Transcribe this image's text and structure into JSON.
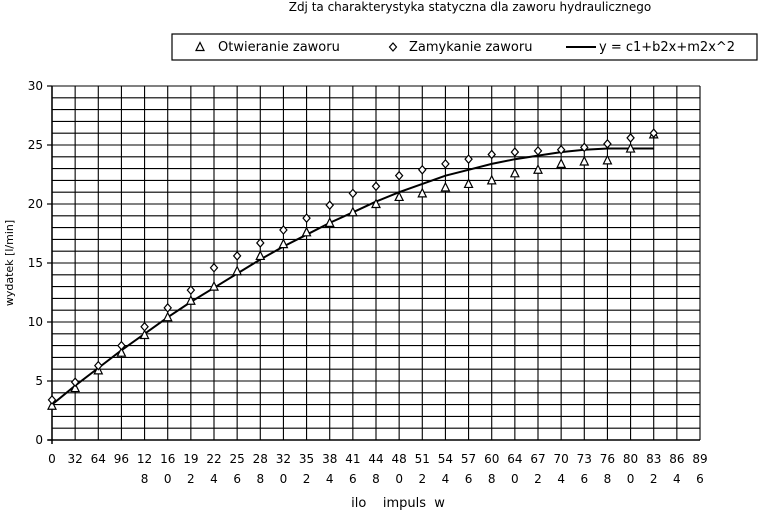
{
  "chart_data": {
    "type": "scatter",
    "title": "Zdj  ta charakterystyka statyczna dla zaworu hydraulicznego",
    "xlabel": "ilo    impuls  w",
    "ylabel": "wydatek [l/min]",
    "x_ticks": [
      {
        "l1": "0",
        "l2": ""
      },
      {
        "l1": "32",
        "l2": ""
      },
      {
        "l1": "64",
        "l2": ""
      },
      {
        "l1": "96",
        "l2": ""
      },
      {
        "l1": "12",
        "l2": "8"
      },
      {
        "l1": "16",
        "l2": "0"
      },
      {
        "l1": "19",
        "l2": "2"
      },
      {
        "l1": "22",
        "l2": "4"
      },
      {
        "l1": "25",
        "l2": "6"
      },
      {
        "l1": "28",
        "l2": "8"
      },
      {
        "l1": "32",
        "l2": "0"
      },
      {
        "l1": "35",
        "l2": "2"
      },
      {
        "l1": "38",
        "l2": "4"
      },
      {
        "l1": "41",
        "l2": "6"
      },
      {
        "l1": "44",
        "l2": "8"
      },
      {
        "l1": "48",
        "l2": "0"
      },
      {
        "l1": "51",
        "l2": "2"
      },
      {
        "l1": "54",
        "l2": "4"
      },
      {
        "l1": "57",
        "l2": "6"
      },
      {
        "l1": "60",
        "l2": "8"
      },
      {
        "l1": "64",
        "l2": "0"
      },
      {
        "l1": "67",
        "l2": "2"
      },
      {
        "l1": "70",
        "l2": "4"
      },
      {
        "l1": "73",
        "l2": "6"
      },
      {
        "l1": "76",
        "l2": "8"
      },
      {
        "l1": "80",
        "l2": "0"
      },
      {
        "l1": "83",
        "l2": "2"
      },
      {
        "l1": "86",
        "l2": "4"
      },
      {
        "l1": "89",
        "l2": "6"
      }
    ],
    "xlim": [
      0,
      896
    ],
    "ylim": [
      0,
      30
    ],
    "y_ticks": [
      0,
      5,
      10,
      15,
      20,
      25,
      30
    ],
    "y_minor_step": 1,
    "grid": true,
    "legend_position": "top",
    "series": [
      {
        "name": "Otwieranie zaworu",
        "marker": "triangle",
        "x": [
          0,
          32,
          64,
          96,
          128,
          160,
          192,
          224,
          256,
          288,
          320,
          352,
          384,
          416,
          448,
          480,
          512,
          544,
          576,
          608,
          640,
          672,
          704,
          736,
          768,
          800,
          832
        ],
        "y": [
          2.9,
          4.4,
          5.9,
          7.4,
          8.9,
          10.4,
          11.8,
          13.0,
          14.3,
          15.6,
          16.6,
          17.6,
          18.4,
          19.3,
          20.0,
          20.6,
          20.9,
          21.4,
          21.7,
          22.0,
          22.6,
          22.9,
          23.4,
          23.6,
          23.7,
          24.7,
          25.9
        ]
      },
      {
        "name": "Zamykanie zaworu",
        "marker": "diamond",
        "x": [
          0,
          32,
          64,
          96,
          128,
          160,
          192,
          224,
          256,
          288,
          320,
          352,
          384,
          416,
          448,
          480,
          512,
          544,
          576,
          608,
          640,
          672,
          704,
          736,
          768,
          800,
          832
        ],
        "y": [
          3.4,
          4.9,
          6.3,
          8.0,
          9.6,
          11.2,
          12.7,
          14.6,
          15.6,
          16.7,
          17.8,
          18.8,
          19.9,
          20.9,
          21.5,
          22.4,
          22.9,
          23.4,
          23.8,
          24.2,
          24.4,
          24.5,
          24.6,
          24.8,
          25.1,
          25.6,
          26.0
        ]
      },
      {
        "name": "y = c1+b2x+m2x^2",
        "marker": "line",
        "x": [
          0,
          32,
          64,
          96,
          128,
          160,
          192,
          224,
          256,
          288,
          320,
          352,
          384,
          416,
          448,
          480,
          512,
          544,
          576,
          608,
          640,
          672,
          704,
          736,
          768,
          800,
          832
        ],
        "y": [
          3.0,
          4.6,
          6.1,
          7.6,
          9.0,
          10.4,
          11.7,
          12.9,
          14.1,
          15.3,
          16.4,
          17.4,
          18.4,
          19.3,
          20.2,
          21.0,
          21.7,
          22.4,
          22.9,
          23.4,
          23.8,
          24.1,
          24.4,
          24.6,
          24.7,
          24.7,
          24.7
        ]
      }
    ]
  }
}
